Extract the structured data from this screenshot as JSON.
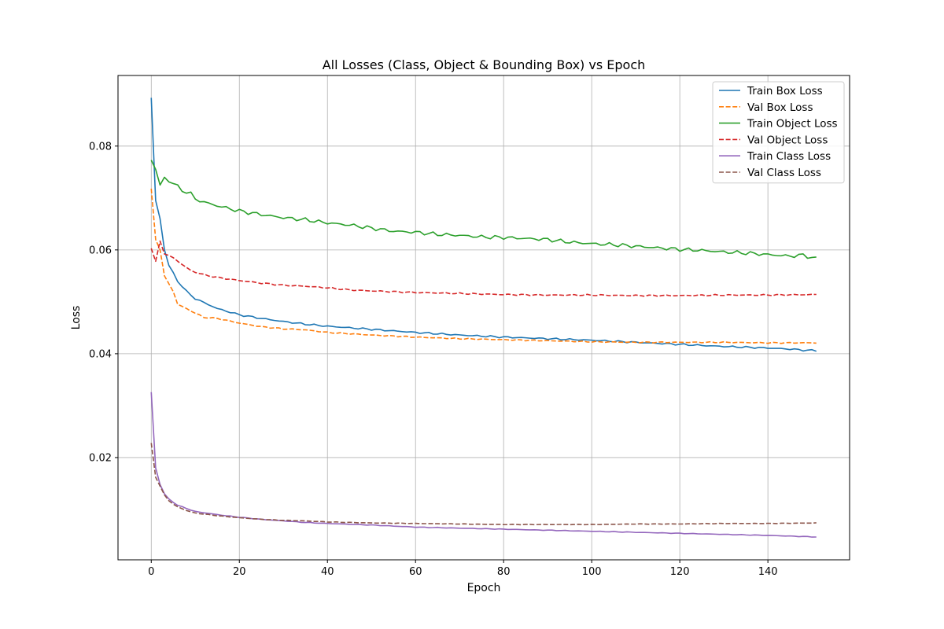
{
  "chart_data": {
    "type": "line",
    "title": "All Losses (Class, Object & Bounding Box) vs Epoch",
    "xlabel": "Epoch",
    "ylabel": "Loss",
    "xlim": [
      -7.55,
      158.55
    ],
    "ylim": [
      0.0003,
      0.0936
    ],
    "xticks": [
      0,
      20,
      40,
      60,
      80,
      100,
      120,
      140
    ],
    "yticks": [
      0.02,
      0.04,
      0.06,
      0.08
    ],
    "ytick_labels": [
      "0.02",
      "0.04",
      "0.06",
      "0.08"
    ],
    "grid": true,
    "legend_position": "top-right",
    "epochs": 151,
    "series": [
      {
        "name": "Train Box Loss",
        "color": "#1f77b4",
        "dash": "solid",
        "anchors": [
          [
            0,
            0.0893
          ],
          [
            1,
            0.0695
          ],
          [
            2,
            0.066
          ],
          [
            3,
            0.06
          ],
          [
            4,
            0.057
          ],
          [
            6,
            0.054
          ],
          [
            8,
            0.052
          ],
          [
            10,
            0.0506
          ],
          [
            15,
            0.0487
          ],
          [
            20,
            0.0475
          ],
          [
            25,
            0.0468
          ],
          [
            30,
            0.0462
          ],
          [
            35,
            0.0457
          ],
          [
            40,
            0.0453
          ],
          [
            50,
            0.0447
          ],
          [
            60,
            0.0441
          ],
          [
            70,
            0.0436
          ],
          [
            80,
            0.0432
          ],
          [
            90,
            0.0429
          ],
          [
            100,
            0.0426
          ],
          [
            110,
            0.0422
          ],
          [
            120,
            0.0418
          ],
          [
            130,
            0.0414
          ],
          [
            140,
            0.0411
          ],
          [
            145,
            0.0409
          ],
          [
            148,
            0.0407
          ],
          [
            151,
            0.0406
          ]
        ],
        "noise": 0.00018
      },
      {
        "name": "Val Box Loss",
        "color": "#ff7f0e",
        "dash": "dashed",
        "anchors": [
          [
            0,
            0.0718
          ],
          [
            1,
            0.062
          ],
          [
            2,
            0.06
          ],
          [
            3,
            0.055
          ],
          [
            4,
            0.0535
          ],
          [
            5,
            0.052
          ],
          [
            6,
            0.0495
          ],
          [
            8,
            0.0487
          ],
          [
            10,
            0.0478
          ],
          [
            12,
            0.047
          ],
          [
            15,
            0.0468
          ],
          [
            20,
            0.0459
          ],
          [
            25,
            0.0452
          ],
          [
            30,
            0.0448
          ],
          [
            35,
            0.0446
          ],
          [
            40,
            0.0441
          ],
          [
            50,
            0.0436
          ],
          [
            60,
            0.0432
          ],
          [
            70,
            0.0429
          ],
          [
            80,
            0.0427
          ],
          [
            90,
            0.0425
          ],
          [
            100,
            0.0423
          ],
          [
            110,
            0.0422
          ],
          [
            120,
            0.0422
          ],
          [
            130,
            0.0422
          ],
          [
            140,
            0.0421
          ],
          [
            151,
            0.0421
          ]
        ],
        "noise": 0.00012
      },
      {
        "name": "Train Object Loss",
        "color": "#2ca02c",
        "dash": "solid",
        "anchors": [
          [
            0,
            0.0773
          ],
          [
            1,
            0.0755
          ],
          [
            2,
            0.0725
          ],
          [
            3,
            0.074
          ],
          [
            5,
            0.0728
          ],
          [
            7,
            0.0715
          ],
          [
            9,
            0.0708
          ],
          [
            10,
            0.0698
          ],
          [
            12,
            0.0692
          ],
          [
            15,
            0.0685
          ],
          [
            20,
            0.0675
          ],
          [
            25,
            0.0668
          ],
          [
            30,
            0.0662
          ],
          [
            35,
            0.0658
          ],
          [
            40,
            0.0652
          ],
          [
            45,
            0.0648
          ],
          [
            50,
            0.0642
          ],
          [
            55,
            0.0636
          ],
          [
            60,
            0.0634
          ],
          [
            65,
            0.063
          ],
          [
            70,
            0.0628
          ],
          [
            75,
            0.0625
          ],
          [
            80,
            0.0624
          ],
          [
            85,
            0.0622
          ],
          [
            90,
            0.062
          ],
          [
            95,
            0.0615
          ],
          [
            100,
            0.0612
          ],
          [
            105,
            0.061
          ],
          [
            110,
            0.0607
          ],
          [
            115,
            0.0604
          ],
          [
            120,
            0.0601
          ],
          [
            125,
            0.0599
          ],
          [
            130,
            0.0596
          ],
          [
            135,
            0.0594
          ],
          [
            140,
            0.0591
          ],
          [
            145,
            0.0588
          ],
          [
            148,
            0.059
          ],
          [
            151,
            0.0583
          ]
        ],
        "noise": 0.0004
      },
      {
        "name": "Val Object Loss",
        "color": "#d62728",
        "dash": "dashed",
        "anchors": [
          [
            0,
            0.0603
          ],
          [
            1,
            0.0578
          ],
          [
            2,
            0.0617
          ],
          [
            3,
            0.0592
          ],
          [
            5,
            0.0585
          ],
          [
            7,
            0.0572
          ],
          [
            9,
            0.056
          ],
          [
            12,
            0.0552
          ],
          [
            15,
            0.0547
          ],
          [
            20,
            0.0541
          ],
          [
            25,
            0.0536
          ],
          [
            30,
            0.0532
          ],
          [
            35,
            0.053
          ],
          [
            40,
            0.0527
          ],
          [
            45,
            0.0523
          ],
          [
            50,
            0.0521
          ],
          [
            60,
            0.0518
          ],
          [
            70,
            0.0516
          ],
          [
            80,
            0.0514
          ],
          [
            90,
            0.0513
          ],
          [
            100,
            0.0513
          ],
          [
            110,
            0.0512
          ],
          [
            120,
            0.0512
          ],
          [
            130,
            0.0513
          ],
          [
            140,
            0.0513
          ],
          [
            151,
            0.0514
          ]
        ],
        "noise": 0.00015
      },
      {
        "name": "Train Class Loss",
        "color": "#9467bd",
        "dash": "solid",
        "anchors": [
          [
            0,
            0.0326
          ],
          [
            1,
            0.018
          ],
          [
            2,
            0.0148
          ],
          [
            3,
            0.013
          ],
          [
            4,
            0.012
          ],
          [
            6,
            0.0108
          ],
          [
            8,
            0.0102
          ],
          [
            10,
            0.0096
          ],
          [
            15,
            0.009
          ],
          [
            20,
            0.0085
          ],
          [
            25,
            0.0081
          ],
          [
            30,
            0.0078
          ],
          [
            35,
            0.0075
          ],
          [
            40,
            0.0073
          ],
          [
            50,
            0.007
          ],
          [
            60,
            0.0066
          ],
          [
            70,
            0.0064
          ],
          [
            80,
            0.0062
          ],
          [
            90,
            0.006
          ],
          [
            100,
            0.0058
          ],
          [
            110,
            0.0056
          ],
          [
            120,
            0.0054
          ],
          [
            130,
            0.0052
          ],
          [
            140,
            0.005
          ],
          [
            151,
            0.0047
          ]
        ],
        "noise": 6e-05
      },
      {
        "name": "Val Class Loss",
        "color": "#8c564b",
        "dash": "dashed",
        "anchors": [
          [
            0,
            0.0228
          ],
          [
            1,
            0.0162
          ],
          [
            2,
            0.0145
          ],
          [
            3,
            0.0128
          ],
          [
            4,
            0.0117
          ],
          [
            5,
            0.011
          ],
          [
            6,
            0.0105
          ],
          [
            8,
            0.0098
          ],
          [
            10,
            0.0093
          ],
          [
            15,
            0.0088
          ],
          [
            20,
            0.0084
          ],
          [
            25,
            0.0081
          ],
          [
            30,
            0.0079
          ],
          [
            35,
            0.0078
          ],
          [
            40,
            0.0076
          ],
          [
            50,
            0.0074
          ],
          [
            60,
            0.0073
          ],
          [
            70,
            0.0072
          ],
          [
            80,
            0.0071
          ],
          [
            90,
            0.0071
          ],
          [
            100,
            0.0071
          ],
          [
            110,
            0.0072
          ],
          [
            120,
            0.0072
          ],
          [
            130,
            0.0073
          ],
          [
            140,
            0.0073
          ],
          [
            151,
            0.0074
          ]
        ],
        "noise": 5e-05
      }
    ]
  }
}
